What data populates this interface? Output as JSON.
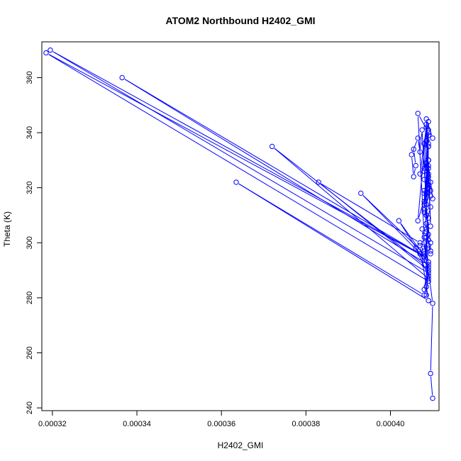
{
  "chart_data": {
    "type": "line",
    "title": "ATOM2 Northbound H2402_GMI",
    "xlabel": "H2402_GMI",
    "ylabel": "Theta (K)",
    "xlim": [
      0.0003175,
      0.0004115
    ],
    "ylim": [
      239,
      373
    ],
    "x_ticks": [
      0.00032,
      0.00034,
      0.00036,
      0.00038,
      0.0004
    ],
    "x_tick_labels": [
      "0.00032",
      "0.00034",
      "0.00036",
      "0.00038",
      "0.00040"
    ],
    "y_ticks": [
      240,
      260,
      280,
      300,
      320,
      340,
      360
    ],
    "y_tick_labels": [
      "240",
      "260",
      "280",
      "300",
      "320",
      "340",
      "360"
    ],
    "grid": false,
    "color": "#0000ff",
    "series": [
      {
        "x": [
          0.00041,
          0.0004095,
          0.00041,
          0.000409,
          0.0004085,
          0.000409,
          0.000408,
          0.000409,
          0.0003195,
          0.000407,
          0.0003365,
          0.000409,
          0.000408,
          0.000409,
          0.0003185,
          0.000408,
          0.000409,
          0.000407,
          0.0004085,
          0.000409,
          0.0003635,
          0.000408,
          0.000409,
          0.000372,
          0.000408,
          0.0004085,
          0.000409,
          0.000383,
          0.000407,
          0.000408,
          0.000393,
          0.000409,
          0.000402,
          0.000409,
          0.000406,
          0.000409,
          0.0004075,
          0.000408,
          0.0004065,
          0.000409,
          0.000409,
          0.000408,
          0.00041,
          0.0004085,
          0.000409,
          0.000407,
          0.0004085,
          0.000409,
          0.000408,
          0.000409,
          0.0004085,
          0.000409,
          0.000408,
          0.0004095,
          0.00041,
          0.000409,
          0.000408,
          0.000409,
          0.0004095,
          0.000409,
          0.0004085,
          0.000409,
          0.000408,
          0.0004095
        ],
        "y": [
          243.5,
          252.5,
          278,
          290,
          281,
          293,
          283,
          289,
          370,
          296,
          360,
          292,
          300,
          286,
          369,
          295,
          298,
          299,
          284,
          279,
          322,
          281,
          287,
          335,
          292,
          302,
          290,
          322,
          300,
          296,
          318,
          293,
          308,
          291,
          298,
          288,
          305,
          302,
          347,
          340,
          344,
          336,
          338,
          345,
          330,
          325,
          342,
          320,
          314,
          335,
          310,
          327,
          318,
          322,
          316,
          328,
          312,
          330,
          306,
          324,
          318,
          336,
          315,
          300
        ]
      },
      {
        "x": [
          0.0004055,
          0.000406,
          0.0004055,
          0.000405,
          0.0004065,
          0.000407,
          0.0004075,
          0.000408,
          0.0004085,
          0.0004065,
          0.000409,
          0.0004095,
          0.0004085,
          0.000409,
          0.000408,
          0.0004095,
          0.0004085,
          0.000409,
          0.000408,
          0.0004095,
          0.0004085,
          0.000409,
          0.000408,
          0.000409,
          0.0004085,
          0.000409,
          0.000408,
          0.000409,
          0.000409,
          0.0004085,
          0.000409,
          0.0004095,
          0.000408,
          0.0004085,
          0.000409,
          0.0004095
        ],
        "y": [
          334,
          328,
          324,
          332,
          338,
          333,
          341,
          326,
          343,
          308,
          321,
          319,
          314,
          303,
          297,
          296,
          305,
          309,
          311,
          313,
          307,
          301,
          327,
          330,
          337,
          339,
          323,
          341,
          335,
          329,
          325,
          317,
          319,
          304,
          299,
          297
        ]
      }
    ]
  }
}
